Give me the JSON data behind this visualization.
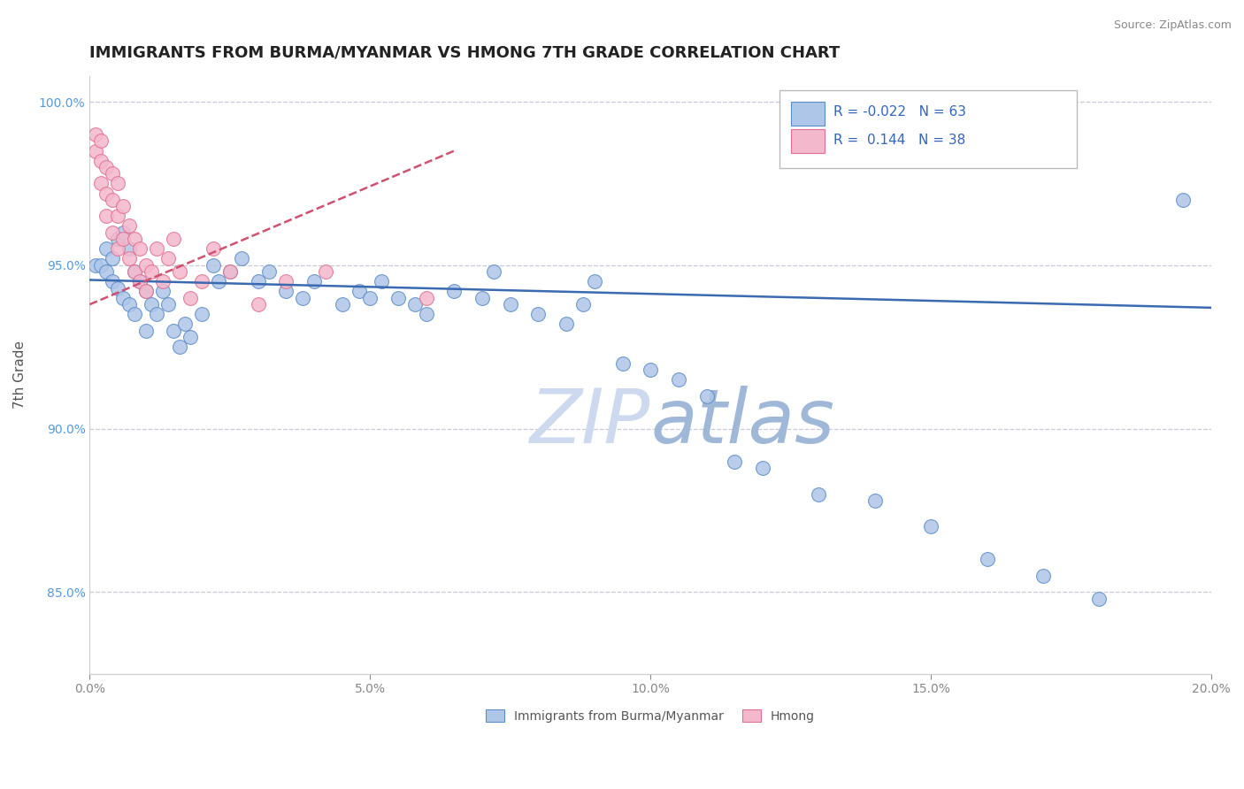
{
  "title": "IMMIGRANTS FROM BURMA/MYANMAR VS HMONG 7TH GRADE CORRELATION CHART",
  "source": "Source: ZipAtlas.com",
  "ylabel": "7th Grade",
  "xlim": [
    0.0,
    0.2
  ],
  "ylim": [
    0.825,
    1.008
  ],
  "xticks": [
    0.0,
    0.05,
    0.1,
    0.15,
    0.2
  ],
  "xtick_labels": [
    "0.0%",
    "5.0%",
    "10.0%",
    "15.0%",
    "20.0%"
  ],
  "yticks": [
    0.85,
    0.9,
    0.95,
    1.0
  ],
  "ytick_labels": [
    "85.0%",
    "90.0%",
    "95.0%",
    "100.0%"
  ],
  "legend_labels": [
    "Immigrants from Burma/Myanmar",
    "Hmong"
  ],
  "r_blue": -0.022,
  "n_blue": 63,
  "r_pink": 0.144,
  "n_pink": 38,
  "blue_color": "#aec6e8",
  "pink_color": "#f4b8cc",
  "blue_edge_color": "#5b8dc8",
  "pink_edge_color": "#e07090",
  "blue_line_color": "#3a6ab0",
  "pink_line_color": "#d05070",
  "watermark_color": "#ccd9ee",
  "background_color": "#ffffff",
  "grid_color": "#c8c8d8",
  "title_color": "#222222",
  "source_color": "#888888",
  "axis_label_color": "#555555",
  "tick_color_y": "#5599dd",
  "tick_color_x": "#888888",
  "blue_scatter_x": [
    0.001,
    0.002,
    0.003,
    0.003,
    0.004,
    0.004,
    0.005,
    0.005,
    0.006,
    0.006,
    0.007,
    0.007,
    0.008,
    0.008,
    0.009,
    0.01,
    0.01,
    0.011,
    0.012,
    0.013,
    0.014,
    0.015,
    0.016,
    0.017,
    0.018,
    0.02,
    0.022,
    0.023,
    0.025,
    0.027,
    0.03,
    0.032,
    0.035,
    0.038,
    0.04,
    0.045,
    0.048,
    0.05,
    0.052,
    0.055,
    0.058,
    0.06,
    0.065,
    0.07,
    0.072,
    0.075,
    0.08,
    0.085,
    0.088,
    0.09,
    0.095,
    0.1,
    0.105,
    0.11,
    0.115,
    0.12,
    0.13,
    0.14,
    0.15,
    0.16,
    0.17,
    0.18,
    0.195
  ],
  "blue_scatter_y": [
    0.95,
    0.95,
    0.955,
    0.948,
    0.952,
    0.945,
    0.958,
    0.943,
    0.96,
    0.94,
    0.955,
    0.938,
    0.948,
    0.935,
    0.945,
    0.942,
    0.93,
    0.938,
    0.935,
    0.942,
    0.938,
    0.93,
    0.925,
    0.932,
    0.928,
    0.935,
    0.95,
    0.945,
    0.948,
    0.952,
    0.945,
    0.948,
    0.942,
    0.94,
    0.945,
    0.938,
    0.942,
    0.94,
    0.945,
    0.94,
    0.938,
    0.935,
    0.942,
    0.94,
    0.948,
    0.938,
    0.935,
    0.932,
    0.938,
    0.945,
    0.92,
    0.918,
    0.915,
    0.91,
    0.89,
    0.888,
    0.88,
    0.878,
    0.87,
    0.86,
    0.855,
    0.848,
    0.97
  ],
  "pink_scatter_x": [
    0.001,
    0.001,
    0.002,
    0.002,
    0.002,
    0.003,
    0.003,
    0.003,
    0.004,
    0.004,
    0.004,
    0.005,
    0.005,
    0.005,
    0.006,
    0.006,
    0.007,
    0.007,
    0.008,
    0.008,
    0.009,
    0.009,
    0.01,
    0.01,
    0.011,
    0.012,
    0.013,
    0.014,
    0.015,
    0.016,
    0.018,
    0.02,
    0.022,
    0.025,
    0.03,
    0.035,
    0.042,
    0.06
  ],
  "pink_scatter_y": [
    0.99,
    0.985,
    0.988,
    0.982,
    0.975,
    0.98,
    0.972,
    0.965,
    0.978,
    0.97,
    0.96,
    0.975,
    0.965,
    0.955,
    0.968,
    0.958,
    0.962,
    0.952,
    0.958,
    0.948,
    0.955,
    0.945,
    0.95,
    0.942,
    0.948,
    0.955,
    0.945,
    0.952,
    0.958,
    0.948,
    0.94,
    0.945,
    0.955,
    0.948,
    0.938,
    0.945,
    0.948,
    0.94
  ],
  "blue_line_x0": 0.0,
  "blue_line_x1": 0.2,
  "blue_line_y0": 0.9455,
  "blue_line_y1": 0.937,
  "pink_line_x0": 0.0,
  "pink_line_x1": 0.065,
  "pink_line_y0": 0.938,
  "pink_line_y1": 0.985
}
